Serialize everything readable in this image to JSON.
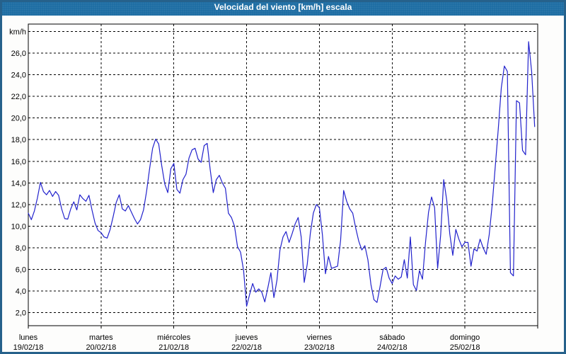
{
  "title": "Velocidad del viento [km/h] escala",
  "colors": {
    "title_bar": "#1c6da3",
    "title_text": "#ffffff",
    "page_border": "#26618b",
    "page_bg": "#fdfdfc",
    "plot_bg": "#ffffff",
    "grid": "#000000",
    "line": "#2222cc",
    "label_text": "#000000"
  },
  "y_axis": {
    "unit_label": "km/h",
    "tick_labels": [
      "2,0",
      "4,0",
      "6,0",
      "8,0",
      "10,0",
      "12,0",
      "14,0",
      "16,0",
      "18,0",
      "20,0",
      "22,0",
      "24,0",
      "26,0"
    ],
    "tick_values": [
      2,
      4,
      6,
      8,
      10,
      12,
      14,
      16,
      18,
      20,
      22,
      24,
      26
    ],
    "min": 2,
    "max": 28
  },
  "x_axis": {
    "days": [
      {
        "name": "lunes",
        "date": "19/02/18"
      },
      {
        "name": "martes",
        "date": "20/02/18"
      },
      {
        "name": "miércoles",
        "date": "21/02/18"
      },
      {
        "name": "jueves",
        "date": "22/02/18"
      },
      {
        "name": "viernes",
        "date": "23/02/18"
      },
      {
        "name": "sábado",
        "date": "24/02/18"
      },
      {
        "name": "domingo",
        "date": "25/02/18"
      }
    ]
  },
  "chart_data": {
    "type": "line",
    "title": "Velocidad del viento [km/h] escala",
    "ylabel": "km/h",
    "ylim": [
      2,
      28
    ],
    "grid": "dashed",
    "x_start": "19/02/18 00:00",
    "x_step_hours": 1,
    "series": [
      {
        "name": "velocidad del viento",
        "values": [
          11.2,
          10.6,
          11.4,
          12.6,
          14.05,
          13.2,
          12.9,
          13.3,
          12.75,
          13.2,
          12.85,
          11.6,
          10.7,
          10.65,
          11.6,
          12.25,
          11.5,
          12.9,
          12.55,
          12.3,
          12.85,
          11.5,
          10.3,
          9.6,
          9.4,
          9.0,
          8.9,
          9.7,
          10.9,
          12.2,
          12.9,
          11.6,
          11.4,
          11.9,
          11.3,
          10.7,
          10.2,
          10.6,
          11.5,
          13.2,
          15.3,
          17.2,
          18.05,
          17.6,
          15.6,
          13.9,
          13.1,
          15.3,
          15.8,
          13.4,
          13.05,
          14.3,
          14.8,
          16.3,
          17.05,
          17.2,
          16.2,
          15.9,
          17.45,
          17.65,
          15.2,
          13.1,
          14.3,
          14.7,
          14.0,
          13.5,
          11.2,
          10.8,
          10.0,
          8.1,
          7.6,
          5.9,
          2.6,
          3.7,
          4.7,
          3.9,
          4.2,
          3.9,
          3.0,
          4.3,
          5.7,
          3.4,
          5.0,
          7.8,
          9.0,
          9.5,
          8.5,
          9.3,
          10.2,
          10.8,
          9.0,
          4.8,
          6.5,
          9.3,
          11.2,
          12.0,
          11.7,
          9.2,
          5.6,
          7.2,
          6.1,
          6.2,
          6.3,
          8.7,
          13.3,
          12.3,
          11.6,
          11.2,
          9.8,
          8.6,
          7.8,
          8.2,
          6.9,
          4.6,
          3.2,
          2.95,
          4.4,
          6.0,
          6.2,
          5.2,
          4.7,
          5.4,
          5.1,
          5.3,
          6.9,
          5.2,
          9.0,
          4.6,
          4.05,
          5.9,
          5.1,
          8.5,
          11.3,
          12.7,
          11.7,
          6.1,
          9.2,
          14.3,
          12.4,
          9.3,
          7.3,
          9.7,
          8.8,
          8.1,
          8.5,
          8.5,
          6.3,
          7.9,
          7.7,
          8.8,
          8.0,
          7.4,
          9.2,
          12.0,
          15.5,
          19.0,
          22.8,
          24.8,
          24.3,
          5.7,
          5.4,
          21.6,
          21.4,
          17.0,
          16.6,
          27.05,
          24.3,
          19.2
        ]
      }
    ]
  }
}
